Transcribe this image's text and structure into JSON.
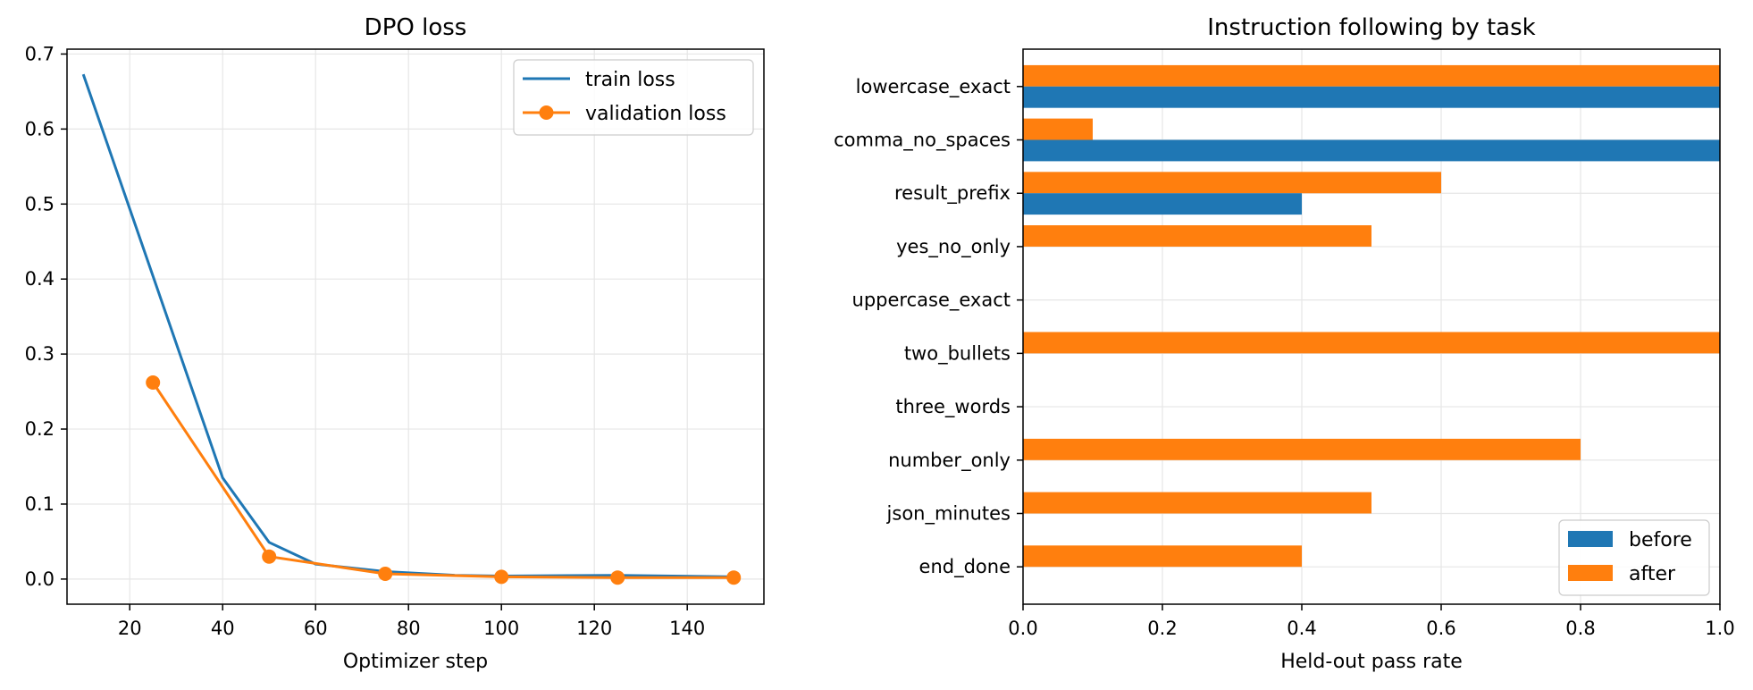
{
  "chart_data": [
    {
      "type": "line",
      "title": "DPO loss",
      "xlabel": "Optimizer step",
      "ylabel": "",
      "xlim": [
        6.5,
        156.5
      ],
      "ylim": [
        -0.0335,
        0.7065
      ],
      "xticks": [
        20,
        40,
        60,
        80,
        100,
        120,
        140
      ],
      "yticks": [
        0.0,
        0.1,
        0.2,
        0.3,
        0.4,
        0.5,
        0.6,
        0.7
      ],
      "grid": true,
      "legend_position": "top-right",
      "series": [
        {
          "name": "train loss",
          "color": "#1f77b4",
          "marker": "none",
          "x": [
            10,
            40,
            50,
            60,
            75,
            90,
            100,
            125,
            150
          ],
          "y": [
            0.673,
            0.135,
            0.049,
            0.02,
            0.01,
            0.005,
            0.004,
            0.005,
            0.003
          ]
        },
        {
          "name": "validation loss",
          "color": "#ff7f0e",
          "marker": "circle",
          "x": [
            25,
            50,
            75,
            100,
            125,
            150
          ],
          "y": [
            0.262,
            0.03,
            0.007,
            0.003,
            0.002,
            0.002
          ]
        }
      ]
    },
    {
      "type": "bar",
      "orientation": "horizontal",
      "title": "Instruction following by task",
      "xlabel": "Held-out pass rate",
      "ylabel": "",
      "xlim": [
        0.0,
        1.0
      ],
      "xticks": [
        0.0,
        0.2,
        0.4,
        0.6,
        0.8,
        1.0
      ],
      "grid": true,
      "legend_position": "bottom-right",
      "categories": [
        "lowercase_exact",
        "comma_no_spaces",
        "result_prefix",
        "yes_no_only",
        "uppercase_exact",
        "two_bullets",
        "three_words",
        "number_only",
        "json_minutes",
        "end_done"
      ],
      "series": [
        {
          "name": "before",
          "color": "#1f77b4",
          "values": [
            1.0,
            1.0,
            0.4,
            0.0,
            0.0,
            0.0,
            0.0,
            0.0,
            0.0,
            0.0
          ]
        },
        {
          "name": "after",
          "color": "#ff7f0e",
          "values": [
            1.0,
            0.1,
            0.6,
            0.5,
            0.0,
            1.0,
            0.0,
            0.8,
            0.5,
            0.4
          ]
        }
      ]
    }
  ]
}
